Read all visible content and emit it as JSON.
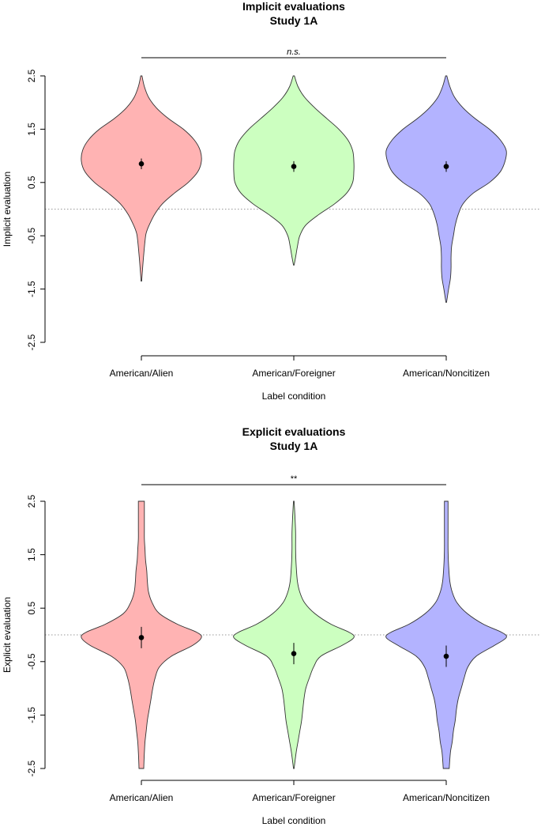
{
  "chart_data": [
    {
      "type": "violin",
      "title": "Implicit evaluations",
      "subtitle": "Study 1A",
      "xlabel": "Label condition",
      "ylabel": "Implicit evaluation",
      "ylim": [
        -2.5,
        2.5
      ],
      "yticks": [
        "2.5",
        "1.5",
        "0.5",
        "-0.5",
        "-1.5",
        "-2.5"
      ],
      "reference_line": 0,
      "significance": "n.s.",
      "significance_italic": true,
      "categories": [
        "American/Alien",
        "American/Foreigner",
        "American/Noncitizen"
      ],
      "series": [
        {
          "name": "American/Alien",
          "color": "#ffb3b3",
          "mean": 0.85,
          "ci": [
            0.75,
            0.95
          ],
          "y_min": -1.35,
          "y_max": 2.5,
          "profile": [
            [
              2.5,
              0.01
            ],
            [
              2.3,
              0.05
            ],
            [
              2.1,
              0.12
            ],
            [
              1.9,
              0.25
            ],
            [
              1.7,
              0.45
            ],
            [
              1.5,
              0.7
            ],
            [
              1.3,
              0.88
            ],
            [
              1.1,
              0.98
            ],
            [
              0.9,
              1.0
            ],
            [
              0.7,
              0.94
            ],
            [
              0.5,
              0.78
            ],
            [
              0.3,
              0.55
            ],
            [
              0.1,
              0.35
            ],
            [
              -0.1,
              0.22
            ],
            [
              -0.3,
              0.13
            ],
            [
              -0.45,
              0.08
            ],
            [
              -0.6,
              0.06
            ],
            [
              -0.9,
              0.035
            ],
            [
              -1.2,
              0.015
            ],
            [
              -1.35,
              0.005
            ]
          ]
        },
        {
          "name": "American/Foreigner",
          "color": "#ccffc0",
          "mean": 0.8,
          "ci": [
            0.7,
            0.9
          ],
          "y_min": -1.05,
          "y_max": 2.5,
          "profile": [
            [
              2.5,
              0.01
            ],
            [
              2.3,
              0.07
            ],
            [
              2.1,
              0.18
            ],
            [
              1.9,
              0.35
            ],
            [
              1.7,
              0.55
            ],
            [
              1.5,
              0.75
            ],
            [
              1.3,
              0.9
            ],
            [
              1.1,
              0.98
            ],
            [
              0.9,
              1.0
            ],
            [
              0.7,
              1.0
            ],
            [
              0.5,
              0.98
            ],
            [
              0.3,
              0.88
            ],
            [
              0.1,
              0.68
            ],
            [
              -0.1,
              0.42
            ],
            [
              -0.3,
              0.2
            ],
            [
              -0.5,
              0.1
            ],
            [
              -0.7,
              0.06
            ],
            [
              -0.9,
              0.03
            ],
            [
              -1.05,
              0.005
            ]
          ]
        },
        {
          "name": "American/Noncitizen",
          "color": "#b3b3ff",
          "mean": 0.8,
          "ci": [
            0.7,
            0.9
          ],
          "y_min": -1.75,
          "y_max": 2.5,
          "profile": [
            [
              2.5,
              0.01
            ],
            [
              2.3,
              0.06
            ],
            [
              2.1,
              0.14
            ],
            [
              1.9,
              0.28
            ],
            [
              1.7,
              0.48
            ],
            [
              1.5,
              0.72
            ],
            [
              1.3,
              0.9
            ],
            [
              1.1,
              1.0
            ],
            [
              0.9,
              0.98
            ],
            [
              0.7,
              0.9
            ],
            [
              0.5,
              0.72
            ],
            [
              0.3,
              0.45
            ],
            [
              0.1,
              0.28
            ],
            [
              -0.1,
              0.2
            ],
            [
              -0.3,
              0.15
            ],
            [
              -0.5,
              0.12
            ],
            [
              -0.7,
              0.09
            ],
            [
              -0.9,
              0.08
            ],
            [
              -1.1,
              0.08
            ],
            [
              -1.3,
              0.07
            ],
            [
              -1.5,
              0.04
            ],
            [
              -1.75,
              0.005
            ]
          ]
        }
      ]
    },
    {
      "type": "violin",
      "title": "Explicit evaluations",
      "subtitle": "Study 1A",
      "xlabel": "Label condition",
      "ylabel": "Explicit evaluation",
      "ylim": [
        -2.5,
        2.5
      ],
      "yticks": [
        "2.5",
        "1.5",
        "0.5",
        "-0.5",
        "-1.5",
        "-2.5"
      ],
      "reference_line": 0,
      "significance": "**",
      "significance_italic": false,
      "categories": [
        "American/Alien",
        "American/Foreigner",
        "American/Noncitizen"
      ],
      "series": [
        {
          "name": "American/Alien",
          "color": "#ffb3b3",
          "mean": -0.05,
          "ci": [
            -0.25,
            0.15
          ],
          "y_min": -2.5,
          "y_max": 2.5,
          "profile": [
            [
              2.5,
              0.05
            ],
            [
              2.2,
              0.05
            ],
            [
              2.0,
              0.05
            ],
            [
              1.8,
              0.05
            ],
            [
              1.6,
              0.06
            ],
            [
              1.4,
              0.07
            ],
            [
              1.2,
              0.09
            ],
            [
              1.0,
              0.1
            ],
            [
              0.8,
              0.12
            ],
            [
              0.6,
              0.18
            ],
            [
              0.4,
              0.3
            ],
            [
              0.2,
              0.6
            ],
            [
              0.05,
              0.92
            ],
            [
              -0.05,
              1.0
            ],
            [
              -0.2,
              0.85
            ],
            [
              -0.4,
              0.5
            ],
            [
              -0.6,
              0.3
            ],
            [
              -0.8,
              0.23
            ],
            [
              -1.0,
              0.19
            ],
            [
              -1.2,
              0.16
            ],
            [
              -1.4,
              0.13
            ],
            [
              -1.6,
              0.1
            ],
            [
              -1.8,
              0.08
            ],
            [
              -2.0,
              0.06
            ],
            [
              -2.2,
              0.05
            ],
            [
              -2.5,
              0.04
            ]
          ]
        },
        {
          "name": "American/Foreigner",
          "color": "#ccffc0",
          "mean": -0.35,
          "ci": [
            -0.55,
            -0.15
          ],
          "y_min": -2.5,
          "y_max": 2.5,
          "profile": [
            [
              2.5,
              0.005
            ],
            [
              2.2,
              0.02
            ],
            [
              1.9,
              0.03
            ],
            [
              1.6,
              0.03
            ],
            [
              1.3,
              0.04
            ],
            [
              1.0,
              0.06
            ],
            [
              0.8,
              0.1
            ],
            [
              0.6,
              0.18
            ],
            [
              0.4,
              0.35
            ],
            [
              0.2,
              0.62
            ],
            [
              0.05,
              0.92
            ],
            [
              -0.05,
              1.0
            ],
            [
              -0.2,
              0.8
            ],
            [
              -0.4,
              0.45
            ],
            [
              -0.6,
              0.33
            ],
            [
              -0.8,
              0.26
            ],
            [
              -1.0,
              0.2
            ],
            [
              -1.2,
              0.17
            ],
            [
              -1.4,
              0.15
            ],
            [
              -1.6,
              0.13
            ],
            [
              -1.8,
              0.1
            ],
            [
              -2.0,
              0.07
            ],
            [
              -2.2,
              0.04
            ],
            [
              -2.5,
              0.005
            ]
          ]
        },
        {
          "name": "American/Noncitizen",
          "color": "#b3b3ff",
          "mean": -0.4,
          "ci": [
            -0.6,
            -0.2
          ],
          "y_min": -2.5,
          "y_max": 2.5,
          "profile": [
            [
              2.5,
              0.03
            ],
            [
              2.2,
              0.03
            ],
            [
              1.9,
              0.03
            ],
            [
              1.6,
              0.03
            ],
            [
              1.3,
              0.04
            ],
            [
              1.0,
              0.06
            ],
            [
              0.8,
              0.1
            ],
            [
              0.6,
              0.18
            ],
            [
              0.4,
              0.35
            ],
            [
              0.2,
              0.62
            ],
            [
              0.05,
              0.92
            ],
            [
              -0.05,
              1.0
            ],
            [
              -0.2,
              0.8
            ],
            [
              -0.4,
              0.5
            ],
            [
              -0.6,
              0.36
            ],
            [
              -0.8,
              0.3
            ],
            [
              -1.0,
              0.25
            ],
            [
              -1.2,
              0.2
            ],
            [
              -1.4,
              0.17
            ],
            [
              -1.6,
              0.15
            ],
            [
              -1.8,
              0.12
            ],
            [
              -2.0,
              0.1
            ],
            [
              -2.2,
              0.07
            ],
            [
              -2.5,
              0.05
            ]
          ]
        }
      ]
    }
  ]
}
